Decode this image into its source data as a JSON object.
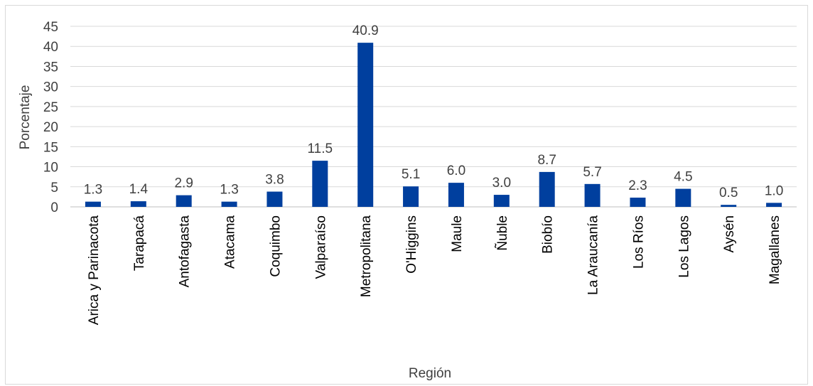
{
  "chart_data": {
    "type": "bar",
    "title": "",
    "xlabel": "Región",
    "ylabel": "Porcentaje",
    "ylim": [
      0,
      45
    ],
    "yticks": [
      0,
      5,
      10,
      15,
      20,
      25,
      30,
      35,
      40,
      45
    ],
    "grid": true,
    "legend": "none",
    "bar_color": "#003f9e",
    "categories": [
      "Arica y Parinacota",
      "Tarapacá",
      "Antofagasta",
      "Atacama",
      "Coquimbo",
      "Valparaíso",
      "Metropolitana",
      "O'Higgins",
      "Maule",
      "Ñuble",
      "Biobío",
      "La Araucanía",
      "Los Ríos",
      "Los Lagos",
      "Aysén",
      "Magallanes"
    ],
    "values": [
      1.3,
      1.4,
      2.9,
      1.3,
      3.8,
      11.5,
      40.9,
      5.1,
      6.0,
      3.0,
      8.7,
      5.7,
      2.3,
      4.5,
      0.5,
      1.0
    ],
    "value_labels": [
      "1.3",
      "1.4",
      "2.9",
      "1.3",
      "3.8",
      "11.5",
      "40.9",
      "5.1",
      "6.0",
      "3.0",
      "8.7",
      "5.7",
      "2.3",
      "4.5",
      "0.5",
      "1.0"
    ]
  }
}
